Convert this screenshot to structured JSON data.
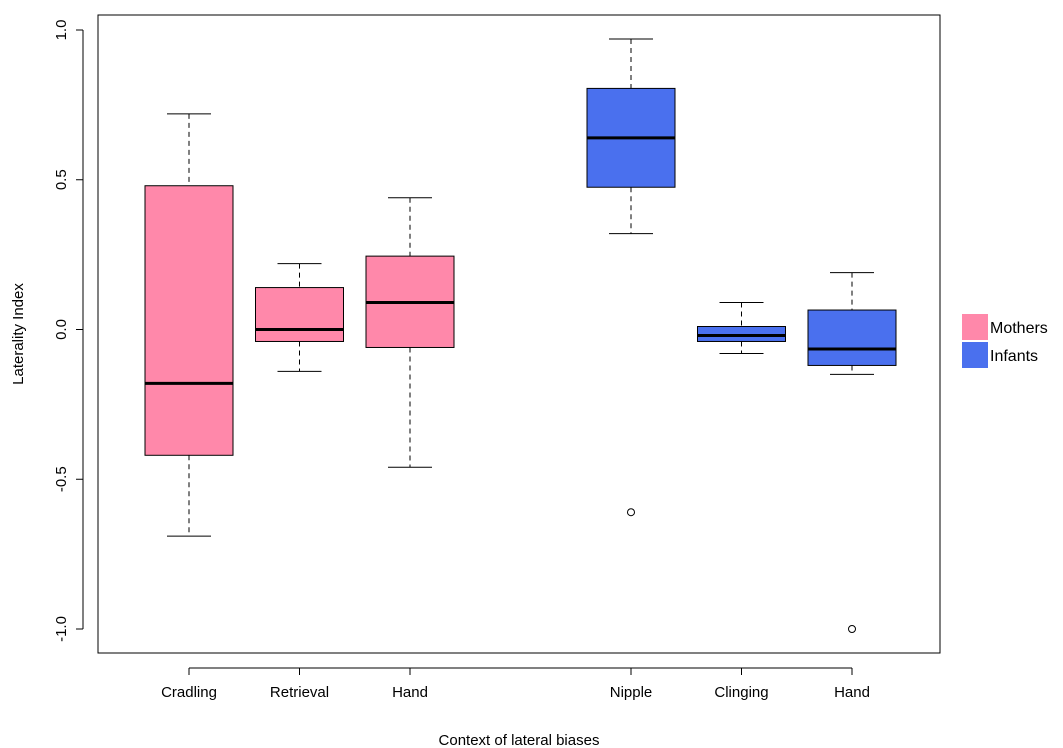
{
  "chart_data": {
    "type": "boxplot",
    "xlabel": "Context of lateral biases",
    "ylabel": "Laterality Index",
    "ylim": [
      -1.08,
      1.05
    ],
    "yticks": [
      -1.0,
      -0.5,
      0.0,
      0.5,
      1.0
    ],
    "ytick_labels": [
      "-1.0",
      "-0.5",
      "0.0",
      "0.5",
      "1.0"
    ],
    "grid": false,
    "legend_placement": "right",
    "series": [
      {
        "name": "Mothers",
        "color": "#ff88aa"
      },
      {
        "name": "Infants",
        "color": "#4a70ee"
      }
    ],
    "boxes": [
      {
        "label": "Cradling",
        "series": 0,
        "position": 1,
        "whisker_low": -0.69,
        "q1": -0.42,
        "median": -0.18,
        "q3": 0.48,
        "whisker_high": 0.72,
        "outliers": []
      },
      {
        "label": "Retrieval",
        "series": 0,
        "position": 2,
        "whisker_low": -0.14,
        "q1": -0.04,
        "median": 0.0,
        "q3": 0.14,
        "whisker_high": 0.22,
        "outliers": []
      },
      {
        "label": "Hand",
        "series": 0,
        "position": 3,
        "whisker_low": -0.46,
        "q1": -0.06,
        "median": 0.09,
        "q3": 0.245,
        "whisker_high": 0.44,
        "outliers": []
      },
      {
        "label": "Nipple",
        "series": 1,
        "position": 5,
        "whisker_low": 0.32,
        "q1": 0.475,
        "median": 0.64,
        "q3": 0.805,
        "whisker_high": 0.97,
        "outliers": [
          -0.61
        ]
      },
      {
        "label": "Clinging",
        "series": 1,
        "position": 6,
        "whisker_low": -0.08,
        "q1": -0.04,
        "median": -0.02,
        "q3": 0.01,
        "whisker_high": 0.09,
        "outliers": []
      },
      {
        "label": "Hand",
        "series": 1,
        "position": 7,
        "whisker_low": -0.15,
        "q1": -0.12,
        "median": -0.065,
        "q3": 0.065,
        "whisker_high": 0.19,
        "outliers": [
          -1.0
        ]
      }
    ]
  }
}
